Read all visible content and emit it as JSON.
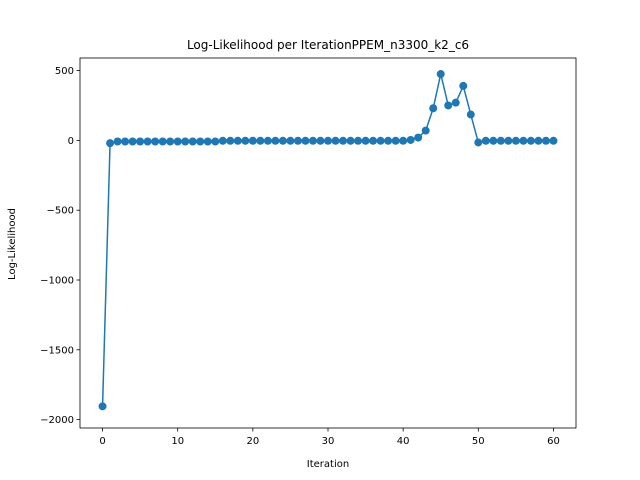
{
  "chart_data": {
    "type": "line",
    "title": "Log-Likelihood per IterationPPEM_n3300_k2_c6",
    "xlabel": "Iteration",
    "ylabel": "Log-Likelihood",
    "xlim": [
      -3,
      63
    ],
    "ylim": [
      -2060,
      590
    ],
    "xticks": [
      0,
      10,
      20,
      30,
      40,
      50,
      60
    ],
    "yticks": [
      -2000,
      -1500,
      -1000,
      -500,
      0,
      500
    ],
    "ytick_labels": [
      "−2000",
      "−1500",
      "−1000",
      "−500",
      "0",
      "500"
    ],
    "grid": false,
    "legend": "none",
    "marker": "circle",
    "color": "#1f77b4",
    "series": [
      {
        "x": [
          0,
          1,
          2,
          3,
          4,
          5,
          6,
          7,
          8,
          9,
          10,
          11,
          12,
          13,
          14,
          15,
          16,
          17,
          18,
          19,
          20,
          21,
          22,
          23,
          24,
          25,
          26,
          27,
          28,
          29,
          30,
          31,
          32,
          33,
          34,
          35,
          36,
          37,
          38,
          39,
          40,
          41,
          42,
          43,
          44,
          45,
          46,
          47,
          48,
          49,
          50,
          51,
          52,
          53,
          54,
          55,
          56,
          57,
          58,
          59,
          60
        ],
        "values": [
          -1905,
          -20,
          -8,
          -8,
          -8,
          -8,
          -8,
          -8,
          -8,
          -8,
          -8,
          -8,
          -8,
          -8,
          -8,
          -8,
          -3,
          -3,
          -3,
          -3,
          -3,
          -3,
          -3,
          -3,
          -3,
          -3,
          -3,
          -3,
          -3,
          -3,
          -3,
          -3,
          -3,
          -3,
          -3,
          -3,
          -3,
          -3,
          -3,
          -3,
          -3,
          3,
          20,
          70,
          230,
          475,
          250,
          270,
          390,
          185,
          -15,
          -3,
          -3,
          -3,
          -3,
          -3,
          -3,
          -3,
          -3,
          -3,
          -3
        ]
      }
    ]
  }
}
